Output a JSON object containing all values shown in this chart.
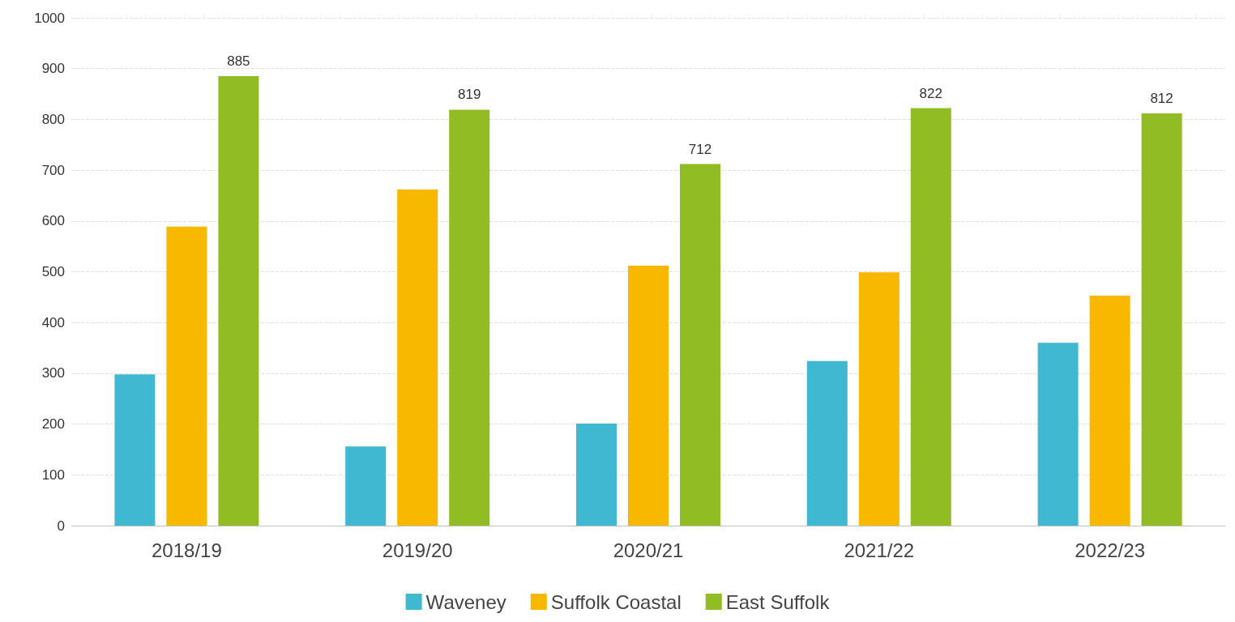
{
  "chart_data": {
    "type": "bar",
    "categories": [
      "2018/19",
      "2019/20",
      "2020/21",
      "2021/22",
      "2022/23"
    ],
    "series": [
      {
        "name": "Waveney",
        "color": "#41b8d2",
        "values": [
          298,
          156,
          201,
          324,
          360
        ]
      },
      {
        "name": "Suffolk Coastal",
        "color": "#f9b800",
        "values": [
          589,
          662,
          512,
          499,
          453
        ]
      },
      {
        "name": "East Suffolk",
        "color": "#92bc23",
        "values": [
          885,
          819,
          712,
          822,
          812
        ],
        "value_labels": [
          "885",
          "819",
          "712",
          "822",
          "812"
        ]
      }
    ],
    "ylim": [
      0,
      1000
    ],
    "yticks": [
      0,
      100,
      200,
      300,
      400,
      500,
      600,
      700,
      800,
      900,
      1000
    ],
    "grid": "y",
    "legend": "bottom"
  }
}
